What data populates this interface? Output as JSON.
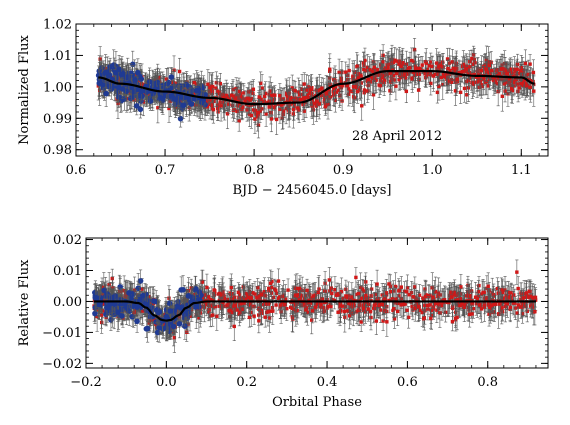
{
  "chart_data": [
    {
      "type": "scatter",
      "panel": "top",
      "title": "",
      "xlabel": "BJD − 2456045.0 [days]",
      "ylabel": "Normalized Flux",
      "xlim": [
        0.6,
        1.13
      ],
      "ylim": [
        0.978,
        1.02
      ],
      "xticks": [
        0.6,
        0.7,
        0.8,
        0.9,
        1.0,
        1.1
      ],
      "xtick_labels": [
        "0.6",
        "0.7",
        "0.8",
        "0.9",
        "1.0",
        "1.1"
      ],
      "yticks": [
        0.98,
        0.99,
        1.0,
        1.01,
        1.02
      ],
      "ytick_labels": [
        "0.98",
        "0.99",
        "1.00",
        "1.01",
        "1.02"
      ],
      "annotation": "28 April 2012",
      "series": [
        {
          "color": "#1f3a93",
          "marker": "circle",
          "description_range_x": [
            0.625,
            0.745
          ]
        },
        {
          "color": "#d01818",
          "marker": "square",
          "description_range_x": [
            0.625,
            1.115
          ]
        }
      ],
      "model_curve": {
        "color": "#000000",
        "x": [
          0.625,
          0.65,
          0.7,
          0.75,
          0.8,
          0.85,
          0.9,
          0.95,
          1.0,
          1.05,
          1.1,
          1.115
        ],
        "y": [
          1.003,
          1.001,
          0.9985,
          0.9965,
          0.9945,
          0.995,
          1.001,
          1.005,
          1.005,
          1.0035,
          1.003,
          1.001
        ]
      }
    },
    {
      "type": "scatter",
      "panel": "bottom",
      "title": "",
      "xlabel": "Orbital Phase",
      "ylabel": "Relative Flux",
      "xlim": [
        -0.2,
        0.95
      ],
      "ylim": [
        -0.0215,
        0.0205
      ],
      "xticks": [
        -0.2,
        0.0,
        0.2,
        0.4,
        0.6,
        0.8
      ],
      "xtick_labels": [
        "−0.2",
        "0.0",
        "0.2",
        "0.4",
        "0.6",
        "0.8"
      ],
      "yticks": [
        -0.02,
        -0.01,
        0.0,
        0.01,
        0.02
      ],
      "ytick_labels": [
        "−0.02",
        "−0.01",
        "0.00",
        "0.01",
        "0.02"
      ],
      "series": [
        {
          "color": "#1f3a93",
          "marker": "circle",
          "description_range_x": [
            -0.18,
            0.09
          ]
        },
        {
          "color": "#d01818",
          "marker": "square",
          "description_range_x": [
            -0.18,
            0.92
          ]
        }
      ],
      "model_curve": {
        "color": "#000000",
        "x": [
          -0.18,
          -0.1,
          -0.07,
          -0.05,
          -0.03,
          -0.01,
          0.0,
          0.01,
          0.03,
          0.05,
          0.07,
          0.1,
          0.92
        ],
        "y": [
          0.0,
          0.0,
          -0.0005,
          -0.002,
          -0.0045,
          -0.006,
          -0.0062,
          -0.006,
          -0.0045,
          -0.002,
          -0.0005,
          0.0,
          0.0
        ]
      }
    }
  ]
}
